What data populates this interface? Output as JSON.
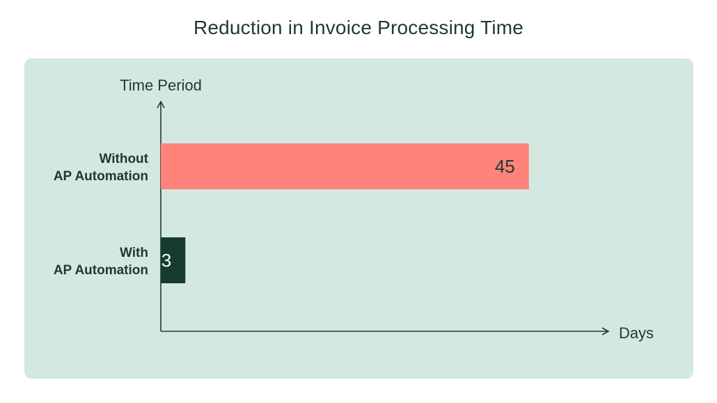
{
  "title": "Reduction in Invoice Processing Time",
  "chart_data": {
    "type": "bar",
    "orientation": "horizontal",
    "title": "Reduction in Invoice Processing Time",
    "xlabel": "Days",
    "ylabel": "Time Period",
    "categories": [
      [
        "Without",
        "AP Automation"
      ],
      [
        "With",
        "AP Automation"
      ]
    ],
    "values": [
      45,
      3
    ],
    "value_labels": [
      "45",
      "3"
    ],
    "colors": [
      "#ff837a",
      "#163c31"
    ],
    "label_colors": [
      "#1d3a32",
      "#ffffff"
    ],
    "xlim": [
      0,
      55
    ],
    "grid": false,
    "legend": "none"
  }
}
